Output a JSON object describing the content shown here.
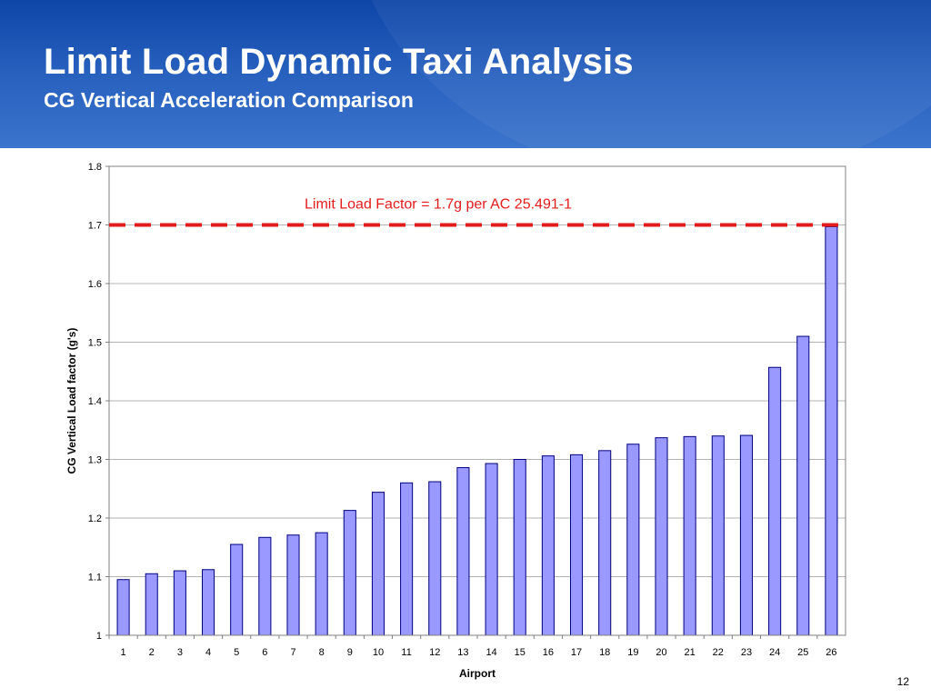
{
  "slide": {
    "title": "Limit Load Dynamic Taxi Analysis",
    "subtitle": "CG Vertical Acceleration Comparison",
    "page_number": "12"
  },
  "colors": {
    "header_top": "#0e46a8",
    "header_bottom": "#3a74cc",
    "bar_fill": "#9999ff",
    "bar_stroke": "#000080",
    "limit_line": "#e31b1b"
  },
  "chart_data": {
    "type": "bar",
    "xlabel": "Airport",
    "ylabel": "CG Vertical Load factor (g's)",
    "ylim": [
      1,
      1.8
    ],
    "yticks": [
      1,
      1.1,
      1.2,
      1.3,
      1.4,
      1.5,
      1.6,
      1.7,
      1.8
    ],
    "ytick_labels": [
      "1",
      "1.1",
      "1.2",
      "1.3",
      "1.4",
      "1.5",
      "1.6",
      "1.7",
      "1.8"
    ],
    "grid": true,
    "categories": [
      "1",
      "2",
      "3",
      "4",
      "5",
      "6",
      "7",
      "8",
      "9",
      "10",
      "11",
      "12",
      "13",
      "14",
      "15",
      "16",
      "17",
      "18",
      "19",
      "20",
      "21",
      "22",
      "23",
      "24",
      "25",
      "26"
    ],
    "values": [
      1.095,
      1.105,
      1.11,
      1.112,
      1.155,
      1.167,
      1.171,
      1.175,
      1.213,
      1.244,
      1.26,
      1.262,
      1.286,
      1.293,
      1.3,
      1.306,
      1.308,
      1.315,
      1.326,
      1.337,
      1.339,
      1.34,
      1.341,
      1.457,
      1.51,
      1.697
    ],
    "reference_line": {
      "value": 1.7,
      "style": "dashed",
      "label": "Limit Load Factor = 1.7g per AC 25.491-1"
    }
  }
}
